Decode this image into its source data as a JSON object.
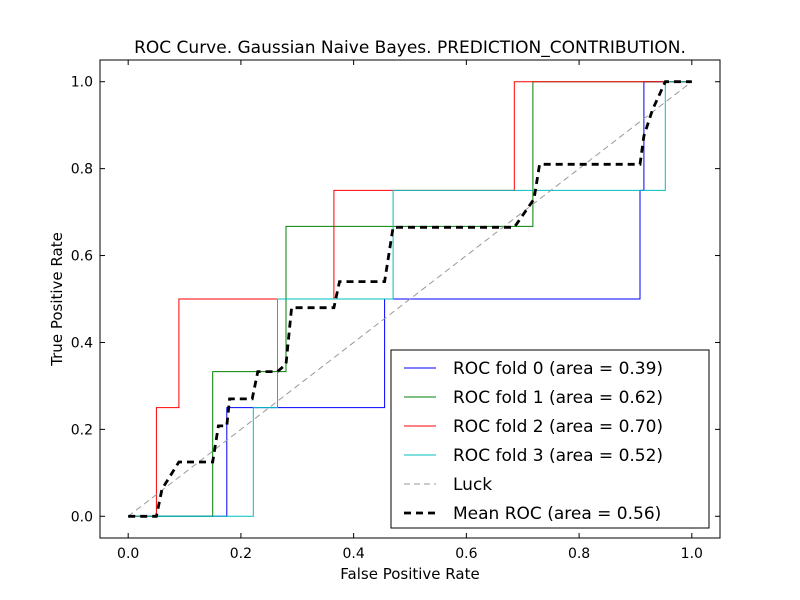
{
  "chart_data": {
    "type": "line",
    "title": "ROC Curve. Gaussian Naive Bayes. PREDICTION_CONTRIBUTION.",
    "xlabel": "False Positive Rate",
    "ylabel": "True Positive Rate",
    "xlim": [
      -0.05,
      1.05
    ],
    "ylim": [
      -0.05,
      1.05
    ],
    "xticks": [
      "0.0",
      "0.2",
      "0.4",
      "0.6",
      "0.8",
      "1.0"
    ],
    "yticks": [
      "0.0",
      "0.2",
      "0.4",
      "0.6",
      "0.8",
      "1.0"
    ],
    "grid": false,
    "legend_position": "bottom-right",
    "series": [
      {
        "name": "ROC fold 0 (area = 0.39)",
        "color": "#0000ff",
        "style": "solid",
        "x": [
          0.0,
          0.175,
          0.175,
          0.455,
          0.455,
          0.908,
          0.908,
          0.915,
          0.915,
          1.0
        ],
        "y": [
          0.0,
          0.0,
          0.25,
          0.25,
          0.5,
          0.5,
          0.75,
          0.75,
          1.0,
          1.0
        ]
      },
      {
        "name": "ROC fold 1 (area = 0.62)",
        "color": "#008000",
        "style": "solid",
        "x": [
          0.0,
          0.15,
          0.15,
          0.28,
          0.28,
          0.718,
          0.718,
          1.0
        ],
        "y": [
          0.0,
          0.0,
          0.333,
          0.333,
          0.667,
          0.667,
          1.0,
          1.0
        ]
      },
      {
        "name": "ROC fold 2 (area = 0.70)",
        "color": "#ff0000",
        "style": "solid",
        "x": [
          0.0,
          0.05,
          0.05,
          0.09,
          0.09,
          0.365,
          0.365,
          0.685,
          0.685,
          1.0
        ],
        "y": [
          0.0,
          0.0,
          0.25,
          0.25,
          0.5,
          0.5,
          0.75,
          0.75,
          1.0,
          1.0
        ]
      },
      {
        "name": "ROC fold 3 (area = 0.52)",
        "color": "#00bfbf",
        "style": "solid",
        "x": [
          0.0,
          0.222,
          0.222,
          0.265,
          0.265,
          0.47,
          0.47,
          0.953,
          0.953,
          1.0
        ],
        "y": [
          0.0,
          0.0,
          0.25,
          0.25,
          0.5,
          0.5,
          0.75,
          0.75,
          1.0,
          1.0
        ]
      },
      {
        "name": "Luck",
        "color": "#999999",
        "style": "dashed",
        "x": [
          0.0,
          1.0
        ],
        "y": [
          0.0,
          1.0
        ]
      },
      {
        "name": "Mean ROC (area = 0.56)",
        "color": "#000000",
        "style": "dashed-bold",
        "x": [
          0.0,
          0.05,
          0.06,
          0.09,
          0.1,
          0.15,
          0.16,
          0.175,
          0.18,
          0.22,
          0.23,
          0.265,
          0.28,
          0.29,
          0.365,
          0.375,
          0.455,
          0.47,
          0.685,
          0.72,
          0.73,
          0.908,
          0.915,
          0.93,
          0.953,
          1.0
        ],
        "y": [
          0.0,
          0.0,
          0.0625,
          0.125,
          0.125,
          0.125,
          0.208,
          0.208,
          0.27,
          0.27,
          0.333,
          0.333,
          0.35,
          0.48,
          0.48,
          0.54,
          0.54,
          0.665,
          0.665,
          0.73,
          0.81,
          0.81,
          0.875,
          0.935,
          1.0,
          1.0
        ]
      }
    ]
  }
}
